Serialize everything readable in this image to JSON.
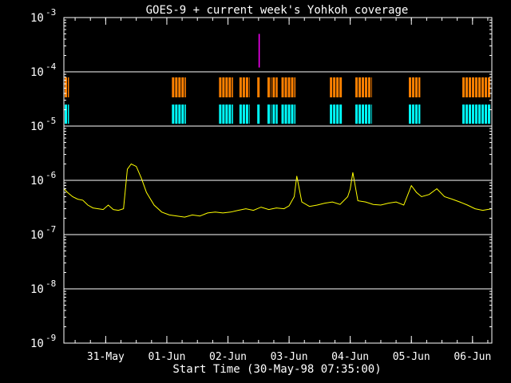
{
  "chart_data": {
    "type": "line",
    "title": "GOES-9 + current week's Yohkoh coverage",
    "xlabel": "Start Time (30-May-98 07:35:00)",
    "ylabel": "",
    "y_scale": "log",
    "ylim": [
      1e-09,
      0.001
    ],
    "xlim": [
      "1998-05-30 07:35",
      "1998-06-06 07:35"
    ],
    "x_ticks": [
      {
        "label": "31-May",
        "date": "1998-05-31 00:00"
      },
      {
        "label": "01-Jun",
        "date": "1998-06-01 00:00"
      },
      {
        "label": "02-Jun",
        "date": "1998-06-02 00:00"
      },
      {
        "label": "03-Jun",
        "date": "1998-06-03 00:00"
      },
      {
        "label": "04-Jun",
        "date": "1998-06-04 00:00"
      },
      {
        "label": "05-Jun",
        "date": "1998-06-05 00:00"
      },
      {
        "label": "06-Jun",
        "date": "1998-06-06 00:00"
      }
    ],
    "y_ticks": [
      {
        "mantissa": "10",
        "exp": "-3",
        "value": 0.001
      },
      {
        "mantissa": "10",
        "exp": "-4",
        "value": 0.0001
      },
      {
        "mantissa": "10",
        "exp": "-5",
        "value": 1e-05
      },
      {
        "mantissa": "10",
        "exp": "-6",
        "value": 1e-06
      },
      {
        "mantissa": "10",
        "exp": "-7",
        "value": 1e-07
      },
      {
        "mantissa": "10",
        "exp": "-8",
        "value": 1e-08
      },
      {
        "mantissa": "10",
        "exp": "-9",
        "value": 1e-09
      }
    ],
    "grid_lines_at": [
      0.0001,
      1e-05,
      1e-06,
      1e-07,
      1e-08
    ],
    "colors": {
      "flux": "#ffff00",
      "coverage_upper": "#ff8000",
      "coverage_lower": "#00ffff",
      "marker": "#ff00ff",
      "grid": "#ffffff",
      "axes": "#ffffff"
    },
    "series": [
      {
        "x": [
          "1998-05-30 07:35",
          "1998-05-30 09:00",
          "1998-05-30 11:00",
          "1998-05-30 13:00",
          "1998-05-30 15:00",
          "1998-05-30 17:00",
          "1998-05-30 19:00",
          "1998-05-30 21:00",
          "1998-05-30 23:00",
          "1998-05-31 01:00",
          "1998-05-31 03:00",
          "1998-05-31 05:00",
          "1998-05-31 07:00",
          "1998-05-31 08:30",
          "1998-05-31 10:00",
          "1998-05-31 12:00",
          "1998-05-31 14:00",
          "1998-05-31 16:00",
          "1998-05-31 19:00",
          "1998-05-31 22:00",
          "1998-06-01 01:00",
          "1998-06-01 04:00",
          "1998-06-01 07:00",
          "1998-06-01 10:00",
          "1998-06-01 13:00",
          "1998-06-01 16:00",
          "1998-06-01 19:00",
          "1998-06-01 22:00",
          "1998-06-02 01:00",
          "1998-06-02 04:00",
          "1998-06-02 07:00",
          "1998-06-02 10:00",
          "1998-06-02 13:00",
          "1998-06-02 16:00",
          "1998-06-02 19:00",
          "1998-06-02 22:00",
          "1998-06-03 00:00",
          "1998-06-03 02:00",
          "1998-06-03 03:00",
          "1998-06-03 05:00",
          "1998-06-03 08:00",
          "1998-06-03 11:00",
          "1998-06-03 14:00",
          "1998-06-03 17:00",
          "1998-06-03 20:00",
          "1998-06-03 23:00",
          "1998-06-04 00:00",
          "1998-06-04 01:00",
          "1998-06-04 03:00",
          "1998-06-04 06:00",
          "1998-06-04 09:00",
          "1998-06-04 12:00",
          "1998-06-04 15:00",
          "1998-06-04 18:00",
          "1998-06-04 21:00",
          "1998-06-05 00:00",
          "1998-06-05 02:00",
          "1998-06-05 04:00",
          "1998-06-05 07:00",
          "1998-06-05 10:00",
          "1998-06-05 13:00",
          "1998-06-05 16:00",
          "1998-06-05 19:00",
          "1998-06-05 22:00",
          "1998-06-06 01:00",
          "1998-06-06 04:00",
          "1998-06-06 07:35"
        ],
        "y": [
          7e-07,
          6e-07,
          5e-07,
          4.5e-07,
          4.3e-07,
          3.5e-07,
          3.1e-07,
          3e-07,
          2.9e-07,
          3.5e-07,
          2.9e-07,
          2.8e-07,
          3e-07,
          1.6e-06,
          2e-06,
          1.8e-06,
          1.1e-06,
          6e-07,
          3.5e-07,
          2.6e-07,
          2.3e-07,
          2.2e-07,
          2.1e-07,
          2.3e-07,
          2.2e-07,
          2.5e-07,
          2.6e-07,
          2.5e-07,
          2.6e-07,
          2.8e-07,
          3e-07,
          2.8e-07,
          3.2e-07,
          2.9e-07,
          3.1e-07,
          3e-07,
          3.4e-07,
          5e-07,
          1.2e-06,
          4e-07,
          3.3e-07,
          3.5e-07,
          3.8e-07,
          4e-07,
          3.6e-07,
          5e-07,
          7e-07,
          1.4e-06,
          4.2e-07,
          4e-07,
          3.6e-07,
          3.5e-07,
          3.8e-07,
          4e-07,
          3.5e-07,
          8e-07,
          6e-07,
          5e-07,
          5.5e-07,
          7e-07,
          5e-07,
          4.5e-07,
          4e-07,
          3.5e-07,
          3e-07,
          2.8e-07,
          3e-07
        ]
      }
    ],
    "coverage_intervals": [
      [
        "1998-05-30 07:40",
        "1998-05-30 09:35"
      ],
      [
        "1998-06-01 02:00",
        "1998-06-01 07:30"
      ],
      [
        "1998-06-01 20:30",
        "1998-06-02 02:00"
      ],
      [
        "1998-06-02 04:30",
        "1998-06-02 08:30"
      ],
      [
        "1998-06-02 11:30",
        "1998-06-02 12:30"
      ],
      [
        "1998-06-02 15:30",
        "1998-06-02 17:00"
      ],
      [
        "1998-06-02 17:30",
        "1998-06-02 19:30"
      ],
      [
        "1998-06-02 21:00",
        "1998-06-03 02:30"
      ],
      [
        "1998-06-03 16:00",
        "1998-06-03 21:00"
      ],
      [
        "1998-06-04 02:00",
        "1998-06-04 08:30"
      ],
      [
        "1998-06-04 23:00",
        "1998-06-05 03:30"
      ],
      [
        "1998-06-05 20:00",
        "1998-06-06 07:30"
      ]
    ],
    "marker_time": "1998-06-02 12:15",
    "marker_range": [
      0.00012,
      0.0005
    ]
  }
}
